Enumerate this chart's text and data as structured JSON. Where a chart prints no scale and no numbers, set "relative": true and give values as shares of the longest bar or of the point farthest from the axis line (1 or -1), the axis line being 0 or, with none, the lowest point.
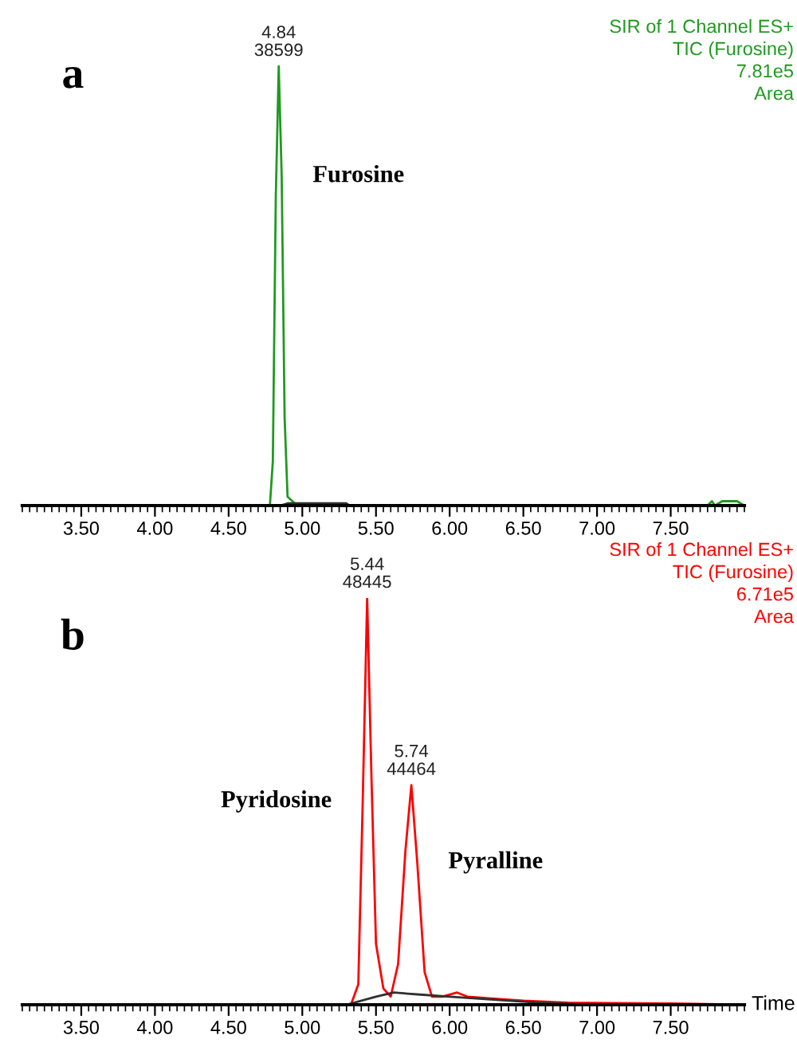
{
  "chart_data": [
    {
      "type": "line",
      "title": "a",
      "relative": true,
      "tick_labels": "x",
      "grid": false,
      "legend": false,
      "xlim": [
        3.1,
        8.0
      ],
      "xticks": [
        {
          "value": 3.5,
          "label": "3.50"
        },
        {
          "value": 4.0,
          "label": "4.00"
        },
        {
          "value": 4.5,
          "label": "4.50"
        },
        {
          "value": 5.0,
          "label": "5.00"
        },
        {
          "value": 5.5,
          "label": "5.50"
        },
        {
          "value": 6.0,
          "label": "6.00"
        },
        {
          "value": 6.5,
          "label": "6.50"
        },
        {
          "value": 7.0,
          "label": "7.00"
        },
        {
          "value": 7.5,
          "label": "7.50"
        }
      ],
      "annotations": [
        "SIR of 1 Channel ES+",
        "TIC (Furosine)",
        "7.81e5",
        "Area",
        {
          "text": "4.84\n38599",
          "x": 4.84,
          "y": 1.0
        },
        {
          "text": "Furosine",
          "x": 4.86,
          "y": 0.75
        }
      ],
      "series": [
        {
          "color": "#1f9a1f",
          "x": [
            3.1,
            4.78,
            4.8,
            4.82,
            4.84,
            4.86,
            4.88,
            4.9,
            4.95,
            5.3,
            5.32,
            7.75,
            7.78,
            7.8,
            7.85,
            7.95,
            8.0
          ],
          "values": [
            0,
            0,
            0.1,
            0.7,
            1.0,
            0.75,
            0.2,
            0.02,
            0.005,
            0.003,
            0,
            0,
            0.01,
            0,
            0.01,
            0.01,
            0
          ]
        },
        {
          "color": "#303030",
          "x": [
            4.85,
            4.9,
            5.3,
            5.32
          ],
          "values": [
            0,
            0.005,
            0.005,
            0
          ]
        }
      ]
    },
    {
      "type": "line",
      "title": "b",
      "relative": true,
      "tick_labels": "x",
      "grid": false,
      "legend": false,
      "xlabel": "Time",
      "xlim": [
        3.1,
        8.0
      ],
      "xticks": [
        {
          "value": 3.5,
          "label": "3.50"
        },
        {
          "value": 4.0,
          "label": "4.00"
        },
        {
          "value": 4.5,
          "label": "4.50"
        },
        {
          "value": 5.0,
          "label": "5.00"
        },
        {
          "value": 5.5,
          "label": "5.50"
        },
        {
          "value": 6.0,
          "label": "6.00"
        },
        {
          "value": 6.5,
          "label": "6.50"
        },
        {
          "value": 7.0,
          "label": "7.00"
        },
        {
          "value": 7.5,
          "label": "7.50"
        }
      ],
      "annotations": [
        "SIR of 1 Channel ES+",
        "TIC (Furosine)",
        "6.71e5",
        "Area",
        {
          "text": "5.44\n48445",
          "x": 5.44,
          "y": 1.0
        },
        {
          "text": "5.74\n44464",
          "x": 5.74,
          "y": 0.54
        },
        {
          "text": "Pyridosine",
          "x": 5.41,
          "y": 0.5
        },
        {
          "text": "Pyralline",
          "x": 5.78,
          "y": 0.35
        }
      ],
      "series": [
        {
          "color": "#ff0000",
          "x": [
            3.1,
            5.33,
            5.38,
            5.41,
            5.44,
            5.47,
            5.5,
            5.55,
            5.6,
            5.65,
            5.7,
            5.74,
            5.78,
            5.83,
            5.88,
            5.95,
            6.05,
            6.12,
            6.3,
            6.5,
            6.8,
            7.5,
            8.0
          ],
          "values": [
            0,
            0,
            0.05,
            0.5,
            1.0,
            0.55,
            0.15,
            0.04,
            0.02,
            0.1,
            0.38,
            0.54,
            0.35,
            0.08,
            0.02,
            0.02,
            0.03,
            0.02,
            0.015,
            0.01,
            0.005,
            0.003,
            0
          ]
        },
        {
          "color": "#303030",
          "x": [
            5.3,
            5.5,
            5.62,
            5.8,
            6.0,
            6.4,
            6.6,
            7.0
          ],
          "values": [
            0,
            0.02,
            0.03,
            0.025,
            0.02,
            0.01,
            0.005,
            0
          ]
        }
      ]
    }
  ]
}
